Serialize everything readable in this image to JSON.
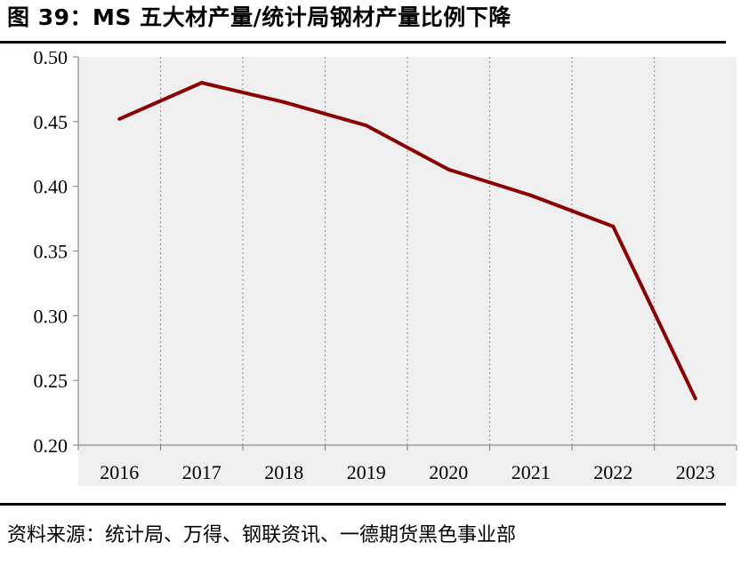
{
  "header": {
    "title": "图 39：MS 五大材产量/统计局钢材产量比例下降"
  },
  "footer": {
    "source": "资料来源：统计局、万得、钢联资讯、一德期货黑色事业部"
  },
  "colors": {
    "line": "#8b0000",
    "plot_bg": "#efefef",
    "grid": "#9a9a9a"
  },
  "chart_data": {
    "type": "line",
    "title": "MS 五大材产量/统计局钢材产量比例下降",
    "xlabel": "",
    "ylabel": "",
    "categories": [
      "2016",
      "2017",
      "2018",
      "2019",
      "2020",
      "2021",
      "2022",
      "2023"
    ],
    "series": [
      {
        "name": "MS五大材产量/统计局钢材产量",
        "values": [
          0.452,
          0.48,
          0.465,
          0.447,
          0.413,
          0.393,
          0.369,
          0.236
        ]
      }
    ],
    "ylim": [
      0.2,
      0.5
    ],
    "yticks": [
      "0.20",
      "0.25",
      "0.30",
      "0.35",
      "0.40",
      "0.45",
      "0.50"
    ],
    "grid": "vertical-dotted",
    "legend": "none"
  }
}
